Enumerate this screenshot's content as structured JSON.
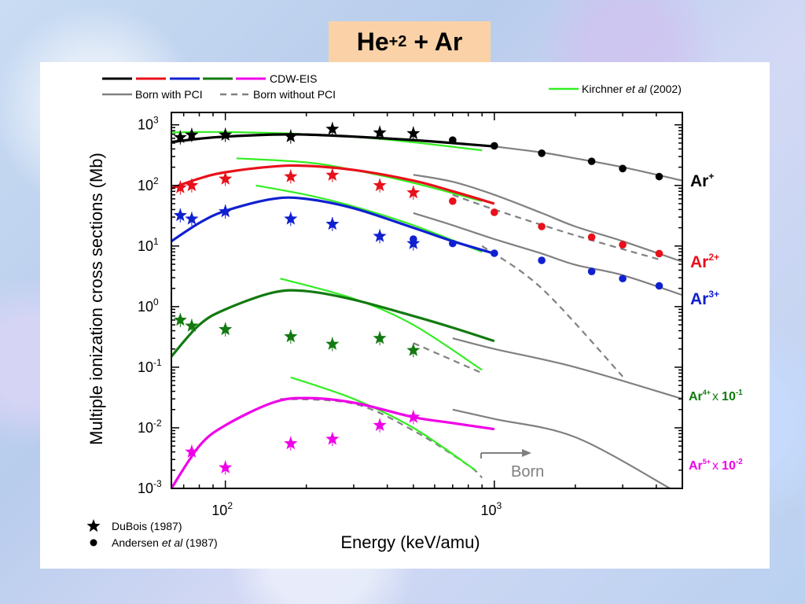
{
  "title": {
    "base": "He",
    "sup": "+2",
    "rest": " + Ar"
  },
  "legend": {
    "cdw_label": "CDW-EIS",
    "born_pci_label": "Born with PCI",
    "born_nopci_label": "Born without PCI",
    "kirchner_prefix": "Kirchner ",
    "kirchner_italic": "et al",
    "kirchner_suffix": " (2002)",
    "dubois_label": "DuBois (1987)",
    "andersen_prefix": "Andersen ",
    "andersen_italic": "et al",
    "andersen_suffix": " (1987)",
    "born_arrow_label": "Born"
  },
  "colors": {
    "ar1": "#000000",
    "ar2": "#e8101a",
    "ar3": "#1020d0",
    "ar4": "#127a10",
    "ar5": "#f000e8",
    "born": "#808080",
    "kirchner": "#33ee22",
    "title_bg": "#fbd2a8"
  },
  "chart_data": {
    "type": "line",
    "xlabel": "Energy (keV/amu)",
    "ylabel": "Multiple ionization cross sections (Mb)",
    "xscale": "log",
    "yscale": "log",
    "xlim": [
      63,
      5000
    ],
    "ylim": [
      0.001,
      1600
    ],
    "x_ticks": [
      {
        "base": "10",
        "exp": "2"
      },
      {
        "base": "10",
        "exp": "3"
      }
    ],
    "y_ticks": [
      {
        "base": "10",
        "exp": "3"
      },
      {
        "base": "10",
        "exp": "2"
      },
      {
        "base": "10",
        "exp": "1"
      },
      {
        "base": "10",
        "exp": "0"
      },
      {
        "base": "10",
        "exp": "-1"
      },
      {
        "base": "10",
        "exp": "-2"
      },
      {
        "base": "10",
        "exp": "-3"
      }
    ],
    "series": [
      {
        "key": "ar1",
        "name": "Ar",
        "sup": "+",
        "suffix": "",
        "label_color": "#000000",
        "cdw": [
          [
            63,
            520
          ],
          [
            80,
            590
          ],
          [
            100,
            640
          ],
          [
            150,
            690
          ],
          [
            200,
            690
          ],
          [
            300,
            640
          ],
          [
            500,
            560
          ],
          [
            700,
            500
          ],
          [
            1000,
            440
          ]
        ],
        "born_pci": [
          [
            1000,
            440
          ],
          [
            1500,
            350
          ],
          [
            2000,
            280
          ],
          [
            3000,
            200
          ],
          [
            5000,
            120
          ]
        ],
        "kirchner": [
          [
            63,
            750
          ],
          [
            100,
            760
          ],
          [
            200,
            700
          ],
          [
            400,
            570
          ],
          [
            900,
            380
          ]
        ],
        "dubois": [
          [
            68,
            620
          ],
          [
            75,
            680
          ],
          [
            100,
            680
          ],
          [
            175,
            640
          ],
          [
            250,
            850
          ],
          [
            375,
            740
          ],
          [
            500,
            720
          ]
        ],
        "andersen": [
          [
            700,
            560
          ],
          [
            1000,
            450
          ],
          [
            1500,
            340
          ],
          [
            2300,
            250
          ],
          [
            3000,
            190
          ],
          [
            4100,
            140
          ]
        ]
      },
      {
        "key": "ar2",
        "name": "Ar",
        "sup": "2+",
        "suffix": "",
        "label_color": "#e8101a",
        "cdw": [
          [
            63,
            90
          ],
          [
            80,
            130
          ],
          [
            100,
            165
          ],
          [
            150,
            205
          ],
          [
            200,
            210
          ],
          [
            300,
            180
          ],
          [
            500,
            120
          ],
          [
            700,
            80
          ],
          [
            1000,
            50
          ]
        ],
        "born_pci": [
          [
            500,
            150
          ],
          [
            700,
            115
          ],
          [
            1000,
            70
          ],
          [
            1500,
            35
          ],
          [
            2000,
            21
          ],
          [
            3000,
            12
          ],
          [
            5000,
            5.5
          ]
        ],
        "born_nopci": [
          [
            700,
            70
          ],
          [
            1000,
            40
          ],
          [
            2000,
            15
          ],
          [
            4100,
            6
          ]
        ],
        "kirchner": [
          [
            110,
            280
          ],
          [
            200,
            240
          ],
          [
            300,
            180
          ],
          [
            500,
            110
          ],
          [
            900,
            55
          ]
        ],
        "dubois": [
          [
            68,
            92
          ],
          [
            75,
            100
          ],
          [
            100,
            128
          ],
          [
            175,
            140
          ],
          [
            250,
            148
          ],
          [
            375,
            100
          ],
          [
            500,
            76
          ]
        ],
        "andersen": [
          [
            700,
            55
          ],
          [
            1000,
            36
          ],
          [
            1500,
            21
          ],
          [
            2300,
            14
          ],
          [
            3000,
            10.5
          ],
          [
            4100,
            7.5
          ]
        ]
      },
      {
        "key": "ar3",
        "name": "Ar",
        "sup": "3+",
        "suffix": "",
        "label_color": "#1020d0",
        "cdw": [
          [
            63,
            12
          ],
          [
            80,
            24
          ],
          [
            100,
            38
          ],
          [
            150,
            60
          ],
          [
            200,
            60
          ],
          [
            300,
            42
          ],
          [
            500,
            20
          ],
          [
            700,
            12
          ],
          [
            1000,
            7.5
          ]
        ],
        "born_pci": [
          [
            500,
            35
          ],
          [
            700,
            22
          ],
          [
            1000,
            13
          ],
          [
            1500,
            7.5
          ],
          [
            2000,
            4.9
          ],
          [
            3000,
            3.3
          ],
          [
            5000,
            1.55
          ]
        ],
        "born_nopci": [
          [
            900,
            10
          ],
          [
            1500,
            2
          ],
          [
            3000,
            0.07
          ]
        ],
        "kirchner": [
          [
            130,
            100
          ],
          [
            200,
            70
          ],
          [
            300,
            45
          ],
          [
            500,
            22
          ],
          [
            900,
            8
          ]
        ],
        "dubois": [
          [
            68,
            32
          ],
          [
            75,
            28
          ],
          [
            100,
            37
          ],
          [
            175,
            28
          ],
          [
            250,
            23
          ],
          [
            375,
            14.5
          ],
          [
            500,
            11
          ]
        ],
        "andersen": [
          [
            500,
            13
          ],
          [
            700,
            11
          ],
          [
            1000,
            7.6
          ],
          [
            1500,
            5.8
          ],
          [
            2300,
            3.8
          ],
          [
            3000,
            2.9
          ],
          [
            4100,
            2.2
          ]
        ]
      },
      {
        "key": "ar4",
        "name": "Ar",
        "sup": "4+",
        "suffix": "x 10",
        "suffix_exp": "-1",
        "label_color": "#127a10",
        "cdw": [
          [
            63,
            0.15
          ],
          [
            80,
            0.5
          ],
          [
            100,
            0.9
          ],
          [
            150,
            1.7
          ],
          [
            200,
            1.8
          ],
          [
            300,
            1.3
          ],
          [
            500,
            0.7
          ],
          [
            700,
            0.45
          ],
          [
            1000,
            0.27
          ]
        ],
        "born_pci": [
          [
            700,
            0.3
          ],
          [
            1000,
            0.2
          ],
          [
            2000,
            0.1
          ],
          [
            5000,
            0.03
          ]
        ],
        "born_nopci": [
          [
            500,
            0.25
          ],
          [
            900,
            0.08
          ]
        ],
        "kirchner": [
          [
            160,
            2.9
          ],
          [
            300,
            1.35
          ],
          [
            500,
            0.5
          ],
          [
            900,
            0.09
          ]
        ],
        "dubois": [
          [
            68,
            0.6
          ],
          [
            75,
            0.48
          ],
          [
            100,
            0.42
          ],
          [
            175,
            0.32
          ],
          [
            250,
            0.24
          ],
          [
            375,
            0.3
          ],
          [
            500,
            0.19
          ]
        ]
      },
      {
        "key": "ar5",
        "name": "Ar",
        "sup": "5+",
        "suffix": "x 10",
        "suffix_exp": "-2",
        "label_color": "#f000e8",
        "cdw": [
          [
            63,
            0.001
          ],
          [
            80,
            0.005
          ],
          [
            100,
            0.011
          ],
          [
            150,
            0.026
          ],
          [
            200,
            0.031
          ],
          [
            300,
            0.026
          ],
          [
            500,
            0.015
          ],
          [
            700,
            0.012
          ],
          [
            1000,
            0.0095
          ]
        ],
        "born_pci": [
          [
            700,
            0.02
          ],
          [
            1000,
            0.014
          ],
          [
            2000,
            0.007
          ],
          [
            4500,
            0.001
          ]
        ],
        "born_nopci": [
          [
            160,
            0.03
          ],
          [
            300,
            0.025
          ],
          [
            500,
            0.009
          ],
          [
            800,
            0.0024
          ],
          [
            900,
            0.0015
          ]
        ],
        "kirchner": [
          [
            175,
            0.068
          ],
          [
            300,
            0.03
          ],
          [
            500,
            0.01
          ],
          [
            850,
            0.002
          ]
        ],
        "dubois": [
          [
            75,
            0.004
          ],
          [
            100,
            0.0022
          ],
          [
            175,
            0.0055
          ],
          [
            250,
            0.0065
          ],
          [
            375,
            0.011
          ],
          [
            500,
            0.015
          ]
        ]
      }
    ]
  }
}
